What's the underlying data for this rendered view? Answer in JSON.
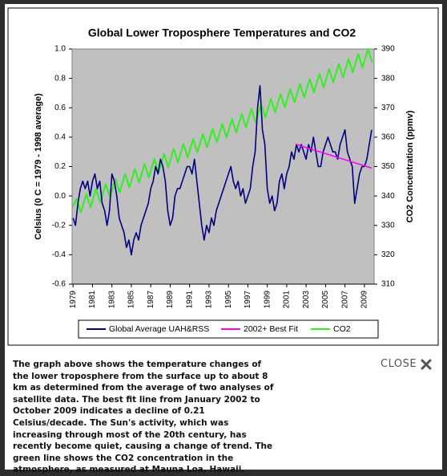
{
  "chart_data": {
    "type": "line",
    "title": "Global Lower Troposphere Temperatures  and CO2",
    "ylabel": "Celsius (0 C = 1979 - 1998 average)",
    "y2label": "CO2 Concentration (ppmv)",
    "xlim": [
      1978.9,
      2010.0
    ],
    "xticks": [
      1979,
      1981,
      1983,
      1985,
      1987,
      1989,
      1991,
      1993,
      1995,
      1997,
      1999,
      2001,
      2003,
      2005,
      2007,
      2009
    ],
    "ylim": [
      -0.6,
      1.0
    ],
    "yticks": [
      -0.6,
      -0.4,
      -0.2,
      {
        "value": 0,
        "label": "0.0"
      },
      0.2,
      0.4,
      0.6,
      0.8,
      {
        "value": 1,
        "label": "1.0"
      }
    ],
    "y2lim": [
      310,
      390
    ],
    "y2ticks": [
      310,
      320,
      330,
      340,
      350,
      360,
      370,
      380,
      390
    ],
    "grid": false,
    "legend": "bottom",
    "series": [
      {
        "name": "Global Average UAH&RSS",
        "color": "#000080",
        "x": [
          1979,
          1979.25,
          1979.5,
          1979.75,
          1980,
          1980.25,
          1980.5,
          1980.75,
          1981,
          1981.25,
          1981.5,
          1981.75,
          1982,
          1982.25,
          1982.5,
          1982.75,
          1983,
          1983.25,
          1983.5,
          1983.75,
          1984,
          1984.25,
          1984.5,
          1984.75,
          1985,
          1985.25,
          1985.5,
          1985.75,
          1986,
          1986.25,
          1986.5,
          1986.75,
          1987,
          1987.25,
          1987.5,
          1987.75,
          1988,
          1988.25,
          1988.5,
          1988.75,
          1989,
          1989.25,
          1989.5,
          1989.75,
          1990,
          1990.25,
          1990.5,
          1990.75,
          1991,
          1991.25,
          1991.5,
          1991.75,
          1992,
          1992.25,
          1992.5,
          1992.75,
          1993,
          1993.25,
          1993.5,
          1993.75,
          1994,
          1994.25,
          1994.5,
          1994.75,
          1995,
          1995.25,
          1995.5,
          1995.75,
          1996,
          1996.25,
          1996.5,
          1996.75,
          1997,
          1997.25,
          1997.5,
          1997.75,
          1998,
          1998.25,
          1998.5,
          1998.75,
          1999,
          1999.25,
          1999.5,
          1999.75,
          2000,
          2000.25,
          2000.5,
          2000.75,
          2001,
          2001.25,
          2001.5,
          2001.75,
          2002,
          2002.25,
          2002.5,
          2002.75,
          2003,
          2003.25,
          2003.5,
          2003.75,
          2004,
          2004.25,
          2004.5,
          2004.75,
          2005,
          2005.25,
          2005.5,
          2005.75,
          2006,
          2006.25,
          2006.5,
          2006.75,
          2007,
          2007.25,
          2007.5,
          2007.75,
          2008,
          2008.25,
          2008.5,
          2008.75,
          2009,
          2009.25,
          2009.5,
          2009.75
        ],
        "values": [
          -0.15,
          -0.2,
          -0.05,
          0.05,
          0.1,
          0.05,
          0.1,
          0.0,
          0.1,
          0.15,
          0.05,
          0.1,
          -0.05,
          -0.1,
          -0.2,
          -0.1,
          0.15,
          0.1,
          0.0,
          -0.15,
          -0.2,
          -0.25,
          -0.35,
          -0.3,
          -0.4,
          -0.3,
          -0.25,
          -0.3,
          -0.2,
          -0.15,
          -0.1,
          -0.05,
          0.05,
          0.1,
          0.2,
          0.15,
          0.25,
          0.2,
          0.1,
          -0.1,
          -0.2,
          -0.15,
          0.0,
          0.05,
          0.05,
          0.1,
          0.15,
          0.2,
          0.2,
          0.15,
          0.25,
          0.1,
          -0.05,
          -0.2,
          -0.3,
          -0.2,
          -0.25,
          -0.15,
          -0.2,
          -0.1,
          -0.05,
          0.0,
          0.05,
          0.1,
          0.15,
          0.2,
          0.1,
          0.05,
          0.1,
          0.0,
          0.05,
          -0.05,
          0.0,
          0.05,
          0.2,
          0.3,
          0.6,
          0.75,
          0.45,
          0.35,
          0.05,
          -0.05,
          0.0,
          -0.1,
          -0.05,
          0.1,
          0.15,
          0.05,
          0.15,
          0.2,
          0.3,
          0.25,
          0.35,
          0.3,
          0.35,
          0.3,
          0.25,
          0.35,
          0.3,
          0.4,
          0.3,
          0.2,
          0.2,
          0.3,
          0.35,
          0.4,
          0.35,
          0.3,
          0.3,
          0.25,
          0.35,
          0.4,
          0.45,
          0.3,
          0.25,
          0.2,
          -0.05,
          0.05,
          0.15,
          0.2,
          0.2,
          0.25,
          0.35,
          0.45
        ]
      },
      {
        "name": "2002+ Best Fit",
        "color": "#ff00ff",
        "x": [
          2002,
          2009.75
        ],
        "values": [
          0.35,
          0.19
        ]
      },
      {
        "name": "CO2",
        "color": "#33ee22",
        "axis": "y2",
        "x": [
          1979,
          1979.37,
          1979.8,
          1980.37,
          1980.8,
          1981.37,
          1981.8,
          1982.37,
          1982.8,
          1983.37,
          1983.8,
          1984.37,
          1984.8,
          1985.37,
          1985.8,
          1986.37,
          1986.8,
          1987.37,
          1987.8,
          1988.37,
          1988.8,
          1989.37,
          1989.8,
          1990.37,
          1990.8,
          1991.37,
          1991.8,
          1992.37,
          1992.8,
          1993.37,
          1993.8,
          1994.37,
          1994.8,
          1995.37,
          1995.8,
          1996.37,
          1996.8,
          1997.37,
          1997.8,
          1998.37,
          1998.8,
          1999.37,
          1999.8,
          2000.37,
          2000.8,
          2001.37,
          2001.8,
          2002.37,
          2002.8,
          2003.37,
          2003.8,
          2004.37,
          2004.8,
          2005.37,
          2005.8,
          2006.37,
          2006.8,
          2007.37,
          2007.8,
          2008.37,
          2008.8,
          2009.37,
          2009.8
        ],
        "values": [
          336.5,
          339,
          334.4,
          340.7,
          336.1,
          342.4,
          337.8,
          344.1,
          339.5,
          345.8,
          341.2,
          347.5,
          342.9,
          349.2,
          344.6,
          350.9,
          346.3,
          352.6,
          348,
          354.3,
          349.7,
          356,
          351.4,
          357.7,
          353.1,
          359.4,
          354.8,
          361.1,
          356.5,
          362.8,
          358.2,
          364.5,
          359.9,
          366.2,
          361.6,
          367.9,
          363.3,
          369.6,
          365,
          371.3,
          366.7,
          373,
          368.4,
          374.7,
          370.1,
          376.4,
          371.8,
          378.1,
          373.5,
          379.8,
          375.2,
          381.5,
          376.9,
          383.2,
          378.6,
          384.9,
          380.3,
          386.6,
          382,
          388.3,
          383.7,
          390,
          385.4
        ]
      }
    ]
  },
  "caption_lines": [
    "The graph above shows the temperature changes of",
    "the lower troposphere from the surface up to about 8",
    "km as determined from the average of two analyses of",
    "satellite data. The best fit line from January 2002 to",
    "October 2009 indicates a decline of 0.21",
    "Celsius/decade. The Sun's activity, which was",
    "increasing through most of the 20th century, has",
    "recently become quiet, causing a change of trend. The",
    "green line shows the CO2 concentration in the",
    "atmosphere, as measured at Mauna Loa, Hawaii."
  ],
  "close_label": "CLOSE"
}
